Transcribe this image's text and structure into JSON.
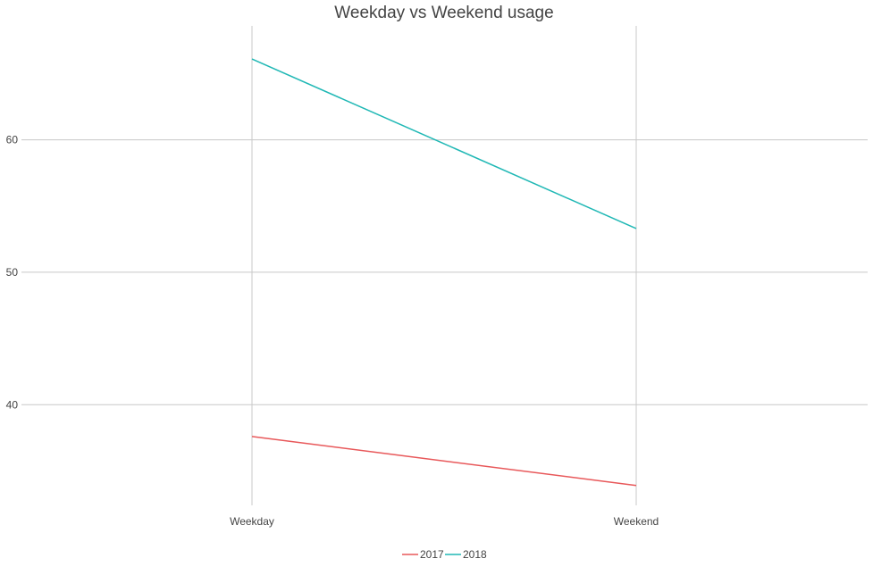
{
  "chart_data": {
    "type": "line",
    "title": "Weekday vs Weekend usage",
    "xlabel": "",
    "ylabel": "",
    "categories": [
      "Weekday",
      "Weekend"
    ],
    "series": [
      {
        "name": "2017",
        "values": [
          37.6,
          33.9
        ],
        "color": "#e8585a"
      },
      {
        "name": "2018",
        "values": [
          66.1,
          53.3
        ],
        "color": "#20b8b5"
      }
    ],
    "yticks": [
      40,
      50,
      60
    ],
    "ytick_labels": [
      "40",
      "50",
      "60"
    ],
    "ylim": [
      32.4,
      68.6
    ],
    "grid": true,
    "legend_position": "bottom"
  }
}
